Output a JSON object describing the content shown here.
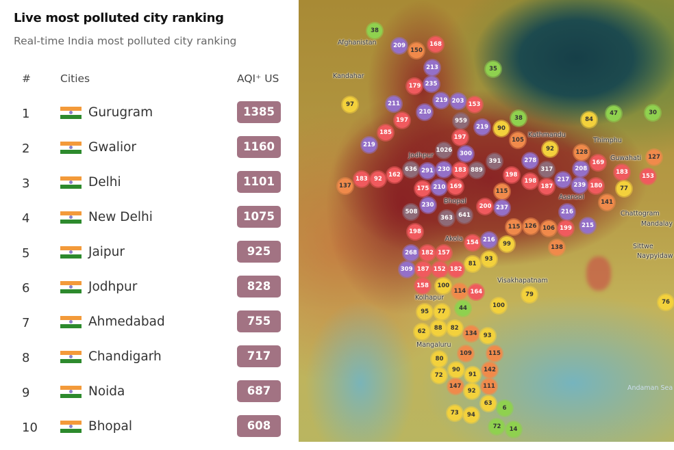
{
  "ranking": {
    "title": "Live most polluted city ranking",
    "subtitle": "Real-time India most polluted city ranking",
    "columns": {
      "rank": "#",
      "city": "Cities",
      "aqi": "AQI⁺ US"
    },
    "badge_color": "#a27383",
    "rows": [
      {
        "rank": "1",
        "city": "Gurugram",
        "aqi": "1385",
        "flag": "india-flag"
      },
      {
        "rank": "2",
        "city": "Gwalior",
        "aqi": "1160",
        "flag": "india-flag"
      },
      {
        "rank": "3",
        "city": "Delhi",
        "aqi": "1101",
        "flag": "india-flag"
      },
      {
        "rank": "4",
        "city": "New Delhi",
        "aqi": "1075",
        "flag": "india-flag"
      },
      {
        "rank": "5",
        "city": "Jaipur",
        "aqi": "925",
        "flag": "india-flag"
      },
      {
        "rank": "6",
        "city": "Jodhpur",
        "aqi": "828",
        "flag": "india-flag"
      },
      {
        "rank": "7",
        "city": "Ahmedabad",
        "aqi": "755",
        "flag": "india-flag"
      },
      {
        "rank": "8",
        "city": "Chandigarh",
        "aqi": "717",
        "flag": "india-flag"
      },
      {
        "rank": "9",
        "city": "Noida",
        "aqi": "687",
        "flag": "india-flag"
      },
      {
        "rank": "10",
        "city": "Bhopal",
        "aqi": "608",
        "flag": "india-flag"
      }
    ]
  },
  "map": {
    "marker_colors": {
      "green": "#8fd14f",
      "yellow": "#f3d13c",
      "orange": "#f08a4b",
      "red": "#f05a5e",
      "purple": "#9470c8",
      "maroon": "#8e6b78"
    },
    "places": [
      "Afghanistan",
      "Kandahar",
      "Kathmandu",
      "Thimphu",
      "Guwahati",
      "Asansol",
      "Chattogram",
      "Mandalay",
      "Sittwe",
      "Naypyidaw",
      "Visakhapatnam",
      "Kolhapur",
      "Akola",
      "Bhopal",
      "Jodhpur",
      "Mangaluru",
      "Andaman Sea"
    ],
    "markers": [
      {
        "v": "38",
        "c": "green"
      },
      {
        "v": "209",
        "c": "purple"
      },
      {
        "v": "150",
        "c": "orange"
      },
      {
        "v": "168",
        "c": "red"
      },
      {
        "v": "213",
        "c": "purple"
      },
      {
        "v": "179",
        "c": "red"
      },
      {
        "v": "235",
        "c": "purple"
      },
      {
        "v": "211",
        "c": "purple"
      },
      {
        "v": "197",
        "c": "red"
      },
      {
        "v": "210",
        "c": "purple"
      },
      {
        "v": "219",
        "c": "purple"
      },
      {
        "v": "203",
        "c": "purple"
      },
      {
        "v": "153",
        "c": "red"
      },
      {
        "v": "97",
        "c": "yellow"
      },
      {
        "v": "185",
        "c": "red"
      },
      {
        "v": "219",
        "c": "purple"
      },
      {
        "v": "959",
        "c": "maroon"
      },
      {
        "v": "219",
        "c": "purple"
      },
      {
        "v": "197",
        "c": "red"
      },
      {
        "v": "35",
        "c": "green"
      },
      {
        "v": "38",
        "c": "green"
      },
      {
        "v": "90",
        "c": "yellow"
      },
      {
        "v": "105",
        "c": "orange"
      },
      {
        "v": "92",
        "c": "yellow"
      },
      {
        "v": "84",
        "c": "yellow"
      },
      {
        "v": "47",
        "c": "green"
      },
      {
        "v": "30",
        "c": "green"
      },
      {
        "v": "1026",
        "c": "maroon"
      },
      {
        "v": "300",
        "c": "purple"
      },
      {
        "v": "391",
        "c": "maroon"
      },
      {
        "v": "636",
        "c": "maroon"
      },
      {
        "v": "889",
        "c": "maroon"
      },
      {
        "v": "230",
        "c": "purple"
      },
      {
        "v": "183",
        "c": "red"
      },
      {
        "v": "291",
        "c": "purple"
      },
      {
        "v": "162",
        "c": "red"
      },
      {
        "v": "183",
        "c": "red"
      },
      {
        "v": "92",
        "c": "red"
      },
      {
        "v": "137",
        "c": "orange"
      },
      {
        "v": "175",
        "c": "red"
      },
      {
        "v": "210",
        "c": "purple"
      },
      {
        "v": "169",
        "c": "red"
      },
      {
        "v": "278",
        "c": "purple"
      },
      {
        "v": "317",
        "c": "maroon"
      },
      {
        "v": "198",
        "c": "red"
      },
      {
        "v": "198",
        "c": "red"
      },
      {
        "v": "187",
        "c": "red"
      },
      {
        "v": "217",
        "c": "purple"
      },
      {
        "v": "208",
        "c": "purple"
      },
      {
        "v": "180",
        "c": "red"
      },
      {
        "v": "128",
        "c": "orange"
      },
      {
        "v": "169",
        "c": "red"
      },
      {
        "v": "183",
        "c": "red"
      },
      {
        "v": "127",
        "c": "orange"
      },
      {
        "v": "153",
        "c": "red"
      },
      {
        "v": "77",
        "c": "yellow"
      },
      {
        "v": "239",
        "c": "purple"
      },
      {
        "v": "141",
        "c": "orange"
      },
      {
        "v": "115",
        "c": "orange"
      },
      {
        "v": "237",
        "c": "purple"
      },
      {
        "v": "200",
        "c": "red"
      },
      {
        "v": "230",
        "c": "purple"
      },
      {
        "v": "641",
        "c": "maroon"
      },
      {
        "v": "508",
        "c": "maroon"
      },
      {
        "v": "363",
        "c": "maroon"
      },
      {
        "v": "216",
        "c": "purple"
      },
      {
        "v": "198",
        "c": "red"
      },
      {
        "v": "126",
        "c": "orange"
      },
      {
        "v": "106",
        "c": "orange"
      },
      {
        "v": "199",
        "c": "red"
      },
      {
        "v": "215",
        "c": "purple"
      },
      {
        "v": "138",
        "c": "orange"
      },
      {
        "v": "115",
        "c": "orange"
      },
      {
        "v": "99",
        "c": "yellow"
      },
      {
        "v": "154",
        "c": "red"
      },
      {
        "v": "216",
        "c": "purple"
      },
      {
        "v": "268",
        "c": "purple"
      },
      {
        "v": "182",
        "c": "red"
      },
      {
        "v": "157",
        "c": "red"
      },
      {
        "v": "81",
        "c": "yellow"
      },
      {
        "v": "93",
        "c": "yellow"
      },
      {
        "v": "309",
        "c": "purple"
      },
      {
        "v": "187",
        "c": "red"
      },
      {
        "v": "152",
        "c": "red"
      },
      {
        "v": "182",
        "c": "red"
      },
      {
        "v": "158",
        "c": "red"
      },
      {
        "v": "100",
        "c": "yellow"
      },
      {
        "v": "114",
        "c": "orange"
      },
      {
        "v": "164",
        "c": "red"
      },
      {
        "v": "44",
        "c": "green"
      },
      {
        "v": "100",
        "c": "yellow"
      },
      {
        "v": "79",
        "c": "yellow"
      },
      {
        "v": "95",
        "c": "yellow"
      },
      {
        "v": "77",
        "c": "yellow"
      },
      {
        "v": "82",
        "c": "yellow"
      },
      {
        "v": "88",
        "c": "yellow"
      },
      {
        "v": "62",
        "c": "yellow"
      },
      {
        "v": "134",
        "c": "orange"
      },
      {
        "v": "93",
        "c": "yellow"
      },
      {
        "v": "80",
        "c": "yellow"
      },
      {
        "v": "109",
        "c": "orange"
      },
      {
        "v": "115",
        "c": "orange"
      },
      {
        "v": "72",
        "c": "yellow"
      },
      {
        "v": "90",
        "c": "yellow"
      },
      {
        "v": "91",
        "c": "yellow"
      },
      {
        "v": "142",
        "c": "orange"
      },
      {
        "v": "147",
        "c": "orange"
      },
      {
        "v": "92",
        "c": "yellow"
      },
      {
        "v": "111",
        "c": "orange"
      },
      {
        "v": "63",
        "c": "yellow"
      },
      {
        "v": "6",
        "c": "green"
      },
      {
        "v": "73",
        "c": "yellow"
      },
      {
        "v": "94",
        "c": "yellow"
      },
      {
        "v": "14",
        "c": "green"
      },
      {
        "v": "72",
        "c": "green"
      },
      {
        "v": "76",
        "c": "yellow"
      }
    ]
  }
}
